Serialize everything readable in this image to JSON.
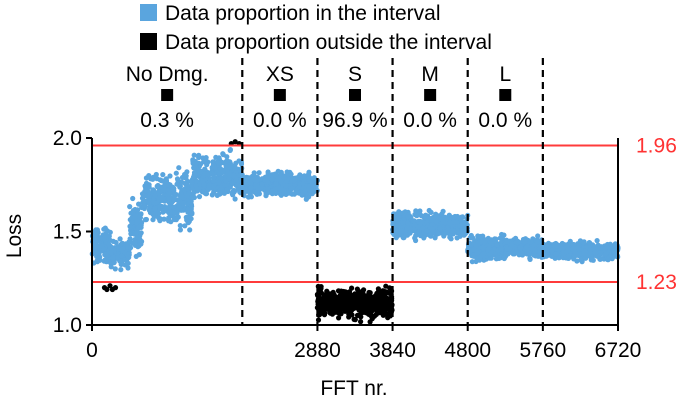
{
  "colors": {
    "in_interval": "#5aa5de",
    "outside_interval": "#000000",
    "threshold": "#ff3b3b",
    "separator": "#000000"
  },
  "chart_data": {
    "type": "scatter",
    "xlabel": "FFT nr.",
    "ylabel": "Loss",
    "xlim": [
      0,
      6720
    ],
    "ylim": [
      1.0,
      2.0
    ],
    "x_ticks": [
      "0",
      "2880",
      "3840",
      "4800",
      "5760",
      "6720"
    ],
    "x_tick_values": [
      0,
      2880,
      3840,
      4800,
      5760,
      6720
    ],
    "y_ticks": [
      "1.0",
      "1.5",
      "2.0"
    ],
    "y_tick_values": [
      1.0,
      1.5,
      2.0
    ],
    "legend": {
      "position": "top",
      "items": [
        {
          "label": "Data proportion in the interval",
          "color": "#5aa5de"
        },
        {
          "label": "Data proportion outside the interval",
          "color": "#000000"
        }
      ]
    },
    "thresholds": [
      {
        "value": 1.96,
        "label": "1.96"
      },
      {
        "value": 1.23,
        "label": "1.23"
      }
    ],
    "separators": [
      1920,
      2880,
      3840,
      4800,
      5760
    ],
    "segments": [
      {
        "label": "No Dmg.",
        "percent_label": "0.3 %",
        "x_start": 0,
        "x_end": 1920,
        "outside_proportion": 0.3
      },
      {
        "label": "XS",
        "percent_label": "0.0 %",
        "x_start": 1920,
        "x_end": 2880,
        "outside_proportion": 0.0
      },
      {
        "label": "S",
        "percent_label": "96.9 %",
        "x_start": 2880,
        "x_end": 3840,
        "outside_proportion": 96.9
      },
      {
        "label": "M",
        "percent_label": "0.0 %",
        "x_start": 3840,
        "x_end": 4800,
        "outside_proportion": 0.0
      },
      {
        "label": "L",
        "percent_label": "0.0 %",
        "x_start": 4800,
        "x_end": 5760,
        "outside_proportion": 0.0
      }
    ],
    "series": [
      {
        "group": "in_interval",
        "bands": [
          {
            "x_start": 0,
            "x_end": 240,
            "y_low": 1.3,
            "y_high": 1.55
          },
          {
            "x_start": 240,
            "x_end": 480,
            "y_low": 1.28,
            "y_high": 1.48
          },
          {
            "x_start": 480,
            "x_end": 640,
            "y_low": 1.34,
            "y_high": 1.72
          },
          {
            "x_start": 640,
            "x_end": 960,
            "y_low": 1.52,
            "y_high": 1.84
          },
          {
            "x_start": 960,
            "x_end": 1280,
            "y_low": 1.45,
            "y_high": 1.87
          },
          {
            "x_start": 1280,
            "x_end": 1600,
            "y_low": 1.62,
            "y_high": 1.95
          },
          {
            "x_start": 1600,
            "x_end": 1920,
            "y_low": 1.62,
            "y_high": 1.96
          },
          {
            "x_start": 1920,
            "x_end": 2880,
            "y_low": 1.66,
            "y_high": 1.84
          },
          {
            "x_start": 3840,
            "x_end": 4320,
            "y_low": 1.44,
            "y_high": 1.63
          },
          {
            "x_start": 4320,
            "x_end": 4800,
            "y_low": 1.44,
            "y_high": 1.62
          },
          {
            "x_start": 4800,
            "x_end": 5280,
            "y_low": 1.32,
            "y_high": 1.5
          },
          {
            "x_start": 5280,
            "x_end": 5760,
            "y_low": 1.34,
            "y_high": 1.49
          },
          {
            "x_start": 5760,
            "x_end": 6720,
            "y_low": 1.33,
            "y_high": 1.46
          }
        ]
      },
      {
        "group": "outside_interval",
        "bands": [
          {
            "x_start": 2880,
            "x_end": 3840,
            "y_low": 1.01,
            "y_high": 1.22
          }
        ],
        "points": [
          {
            "x": 160,
            "y": 1.2
          },
          {
            "x": 190,
            "y": 1.19
          },
          {
            "x": 230,
            "y": 1.21
          },
          {
            "x": 260,
            "y": 1.19
          },
          {
            "x": 300,
            "y": 1.2
          },
          {
            "x": 1780,
            "y": 1.97
          },
          {
            "x": 1830,
            "y": 1.98
          },
          {
            "x": 1880,
            "y": 1.97
          }
        ]
      }
    ]
  }
}
